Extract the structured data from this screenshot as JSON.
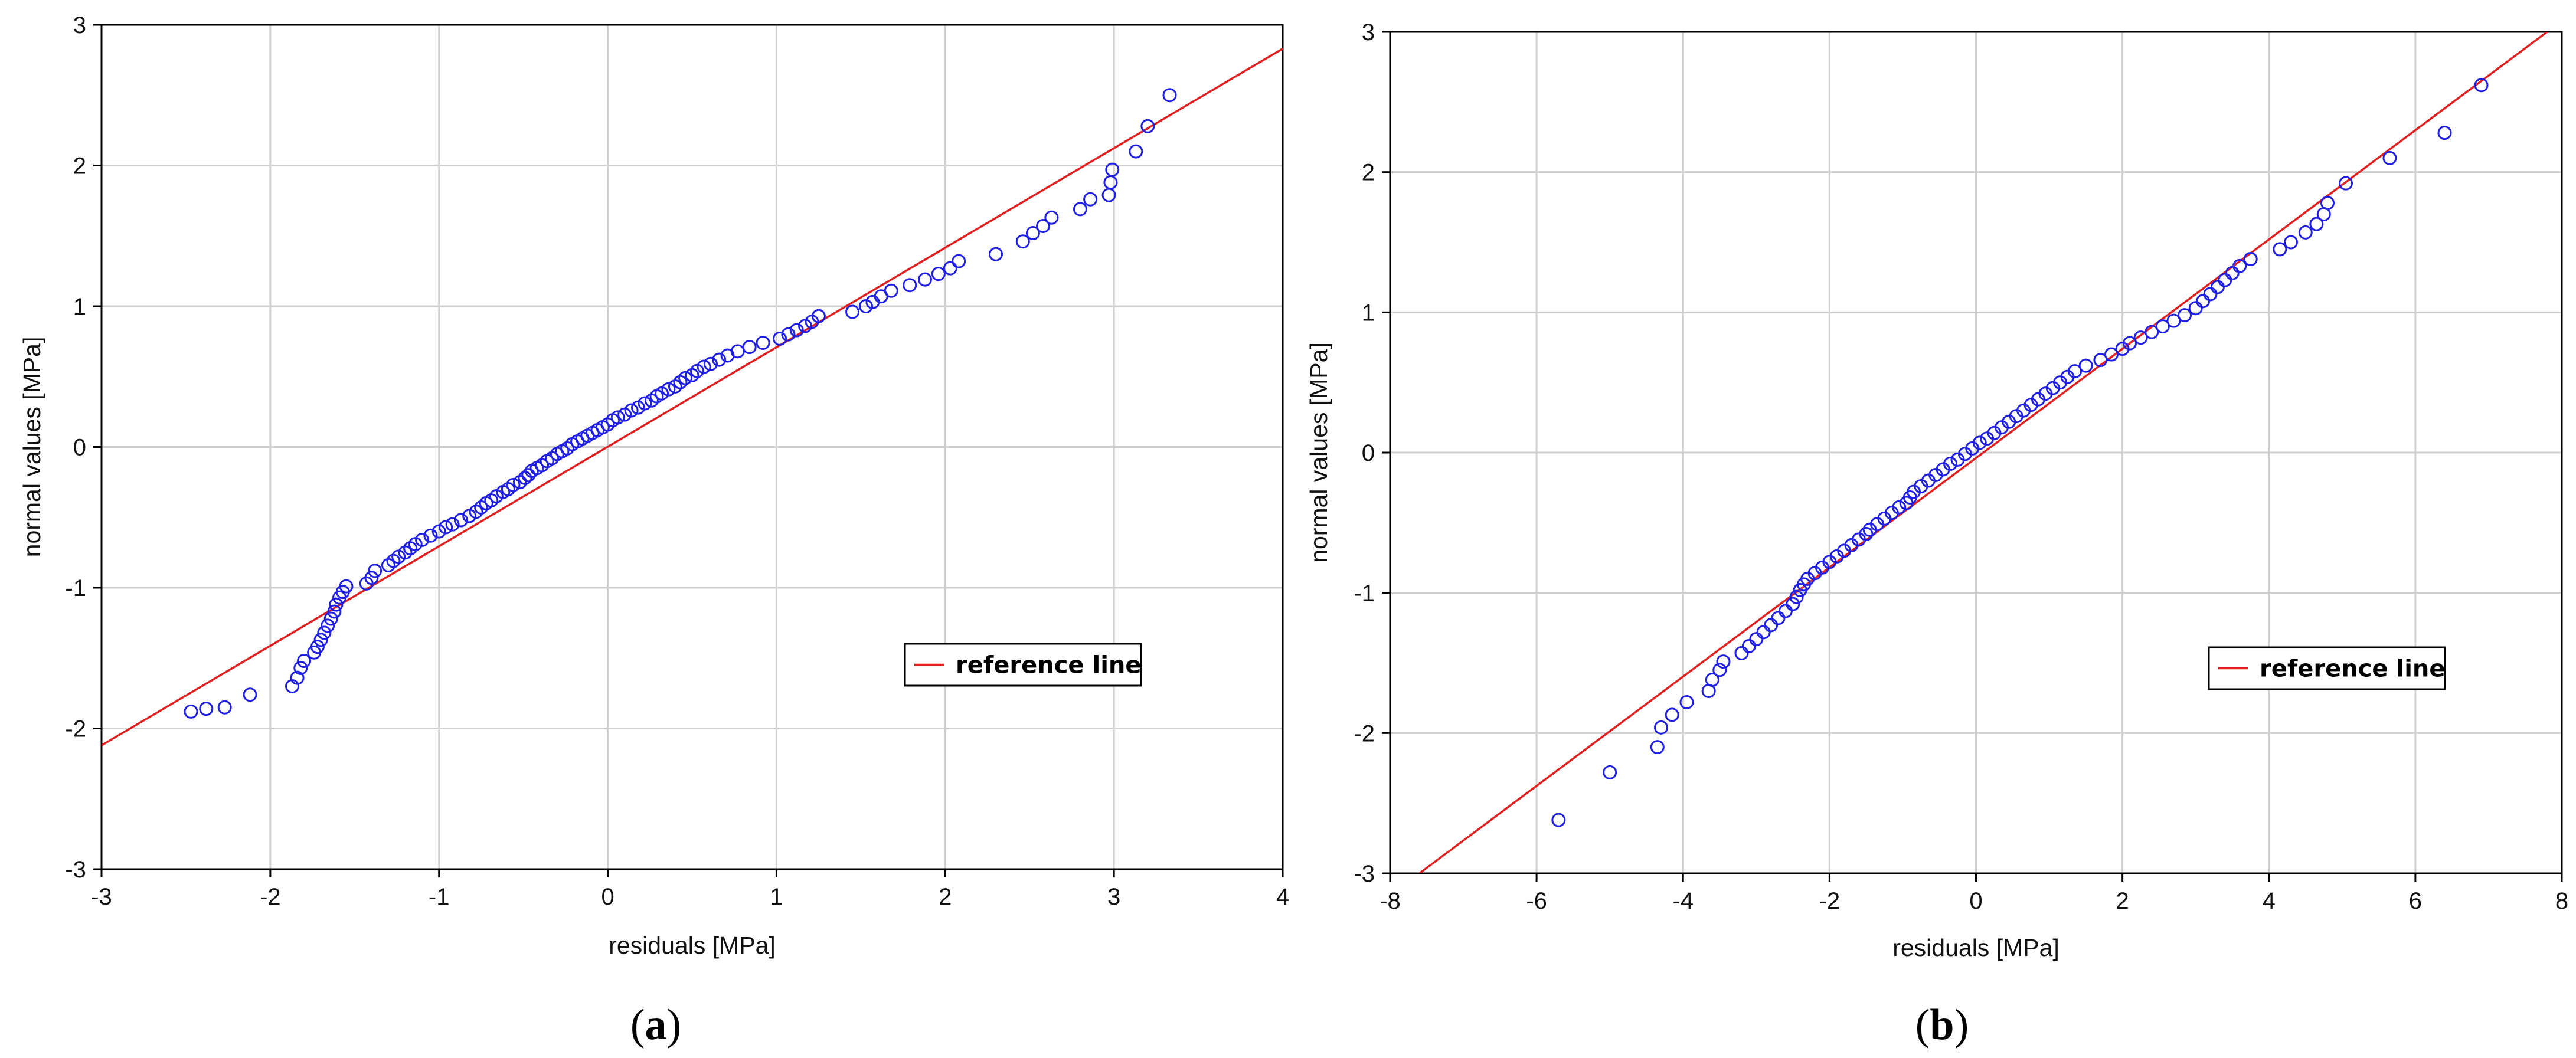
{
  "chart_data": [
    {
      "type": "scatter",
      "caption_letter": "a",
      "xlabel": "residuals  [MPa]",
      "ylabel": "normal values  [MPa]",
      "xlim": [
        -3,
        4
      ],
      "ylim": [
        -3,
        3
      ],
      "xticks": [
        "-3",
        "-2",
        "-1",
        "0",
        "1",
        "2",
        "3",
        "4"
      ],
      "yticks": [
        "-3",
        "-2",
        "-1",
        "0",
        "1",
        "2",
        "3"
      ],
      "grid": true,
      "legend": {
        "label": "reference line",
        "position": "lower-right"
      },
      "marker_color": "#1f1fe6",
      "line_color": "#e02020",
      "reference_line": [
        [
          -3,
          -2.12
        ],
        [
          4,
          2.83
        ]
      ],
      "series": [
        {
          "name": "residuals",
          "x": [
            -2.47,
            -2.38,
            -2.27,
            -2.12,
            -1.87,
            -1.84,
            -1.82,
            -1.8,
            -1.74,
            -1.72,
            -1.7,
            -1.68,
            -1.66,
            -1.64,
            -1.62,
            -1.61,
            -1.59,
            -1.57,
            -1.55,
            -1.43,
            -1.4,
            -1.38,
            -1.3,
            -1.27,
            -1.24,
            -1.2,
            -1.17,
            -1.14,
            -1.1,
            -1.05,
            -1.0,
            -0.96,
            -0.92,
            -0.87,
            -0.82,
            -0.78,
            -0.75,
            -0.72,
            -0.69,
            -0.66,
            -0.62,
            -0.59,
            -0.56,
            -0.52,
            -0.49,
            -0.47,
            -0.45,
            -0.42,
            -0.39,
            -0.36,
            -0.33,
            -0.3,
            -0.27,
            -0.24,
            -0.21,
            -0.18,
            -0.15,
            -0.12,
            -0.09,
            -0.06,
            -0.03,
            0.0,
            0.03,
            0.06,
            0.1,
            0.14,
            0.18,
            0.22,
            0.26,
            0.29,
            0.32,
            0.36,
            0.4,
            0.43,
            0.46,
            0.5,
            0.53,
            0.57,
            0.61,
            0.66,
            0.71,
            0.77,
            0.84,
            0.92,
            1.02,
            1.07,
            1.12,
            1.17,
            1.21,
            1.25,
            1.45,
            1.53,
            1.57,
            1.62,
            1.68,
            1.79,
            1.88,
            1.96,
            2.03,
            2.08,
            2.3,
            2.46,
            2.52,
            2.58,
            2.63,
            2.8,
            2.86,
            2.97,
            2.98,
            2.99,
            3.13,
            3.2,
            3.33
          ],
          "y": [
            -1.88,
            -1.86,
            -1.85,
            -1.76,
            -1.7,
            -1.64,
            -1.57,
            -1.52,
            -1.46,
            -1.42,
            -1.37,
            -1.32,
            -1.27,
            -1.22,
            -1.17,
            -1.12,
            -1.07,
            -1.03,
            -0.99,
            -0.97,
            -0.93,
            -0.88,
            -0.84,
            -0.81,
            -0.78,
            -0.75,
            -0.72,
            -0.69,
            -0.66,
            -0.63,
            -0.6,
            -0.57,
            -0.55,
            -0.52,
            -0.49,
            -0.46,
            -0.43,
            -0.4,
            -0.38,
            -0.35,
            -0.32,
            -0.3,
            -0.27,
            -0.25,
            -0.22,
            -0.2,
            -0.17,
            -0.15,
            -0.13,
            -0.1,
            -0.08,
            -0.05,
            -0.03,
            -0.01,
            0.02,
            0.04,
            0.06,
            0.08,
            0.1,
            0.12,
            0.14,
            0.16,
            0.19,
            0.21,
            0.23,
            0.26,
            0.28,
            0.31,
            0.33,
            0.36,
            0.38,
            0.41,
            0.43,
            0.46,
            0.49,
            0.51,
            0.54,
            0.57,
            0.59,
            0.62,
            0.65,
            0.68,
            0.71,
            0.74,
            0.77,
            0.8,
            0.83,
            0.86,
            0.89,
            0.93,
            0.96,
            1.0,
            1.03,
            1.07,
            1.11,
            1.15,
            1.19,
            1.23,
            1.27,
            1.32,
            1.37,
            1.46,
            1.52,
            1.57,
            1.63,
            1.69,
            1.76,
            1.79,
            1.88,
            1.97,
            2.1,
            2.28,
            2.5
          ]
        }
      ]
    },
    {
      "type": "scatter",
      "caption_letter": "b",
      "xlabel": "residuals    [MPa]",
      "ylabel": "normal values  [MPa]",
      "xlim": [
        -8,
        8
      ],
      "ylim": [
        -3,
        3
      ],
      "xticks": [
        "-8",
        "-6",
        "-4",
        "-2",
        "0",
        "2",
        "4",
        "6",
        "8"
      ],
      "yticks": [
        "-3",
        "-2",
        "-1",
        "0",
        "1",
        "2",
        "3"
      ],
      "grid": true,
      "legend": {
        "label": "reference line",
        "position": "lower-right"
      },
      "marker_color": "#1f1fe6",
      "line_color": "#e02020",
      "reference_line": [
        [
          -7.6,
          -3.0
        ],
        [
          7.8,
          3.0
        ]
      ],
      "series": [
        {
          "name": "residuals",
          "x": [
            -5.7,
            -5.0,
            -4.35,
            -4.3,
            -4.15,
            -3.95,
            -3.65,
            -3.6,
            -3.5,
            -3.45,
            -3.2,
            -3.1,
            -3.0,
            -2.9,
            -2.8,
            -2.7,
            -2.6,
            -2.5,
            -2.45,
            -2.4,
            -2.35,
            -2.3,
            -2.2,
            -2.1,
            -2.0,
            -1.9,
            -1.8,
            -1.7,
            -1.6,
            -1.5,
            -1.45,
            -1.35,
            -1.25,
            -1.15,
            -1.05,
            -0.95,
            -0.9,
            -0.85,
            -0.75,
            -0.65,
            -0.55,
            -0.45,
            -0.35,
            -0.25,
            -0.15,
            -0.05,
            0.05,
            0.15,
            0.25,
            0.35,
            0.45,
            0.55,
            0.65,
            0.75,
            0.85,
            0.95,
            1.05,
            1.15,
            1.25,
            1.35,
            1.5,
            1.7,
            1.85,
            2.0,
            2.1,
            2.25,
            2.4,
            2.55,
            2.7,
            2.85,
            3.0,
            3.1,
            3.2,
            3.3,
            3.4,
            3.5,
            3.6,
            3.75,
            4.15,
            4.3,
            4.5,
            4.65,
            4.75,
            4.8,
            5.05,
            5.65,
            6.4,
            6.9
          ],
          "y": [
            -2.62,
            -2.28,
            -2.1,
            -1.96,
            -1.87,
            -1.78,
            -1.7,
            -1.62,
            -1.55,
            -1.49,
            -1.43,
            -1.38,
            -1.33,
            -1.28,
            -1.23,
            -1.18,
            -1.13,
            -1.08,
            -1.03,
            -0.98,
            -0.94,
            -0.9,
            -0.86,
            -0.82,
            -0.78,
            -0.74,
            -0.7,
            -0.66,
            -0.62,
            -0.58,
            -0.55,
            -0.51,
            -0.47,
            -0.43,
            -0.39,
            -0.36,
            -0.32,
            -0.28,
            -0.24,
            -0.2,
            -0.16,
            -0.12,
            -0.08,
            -0.05,
            -0.01,
            0.03,
            0.07,
            0.1,
            0.14,
            0.18,
            0.22,
            0.26,
            0.3,
            0.34,
            0.38,
            0.42,
            0.46,
            0.5,
            0.54,
            0.58,
            0.62,
            0.66,
            0.7,
            0.74,
            0.78,
            0.82,
            0.86,
            0.9,
            0.94,
            0.98,
            1.03,
            1.08,
            1.13,
            1.18,
            1.23,
            1.28,
            1.33,
            1.38,
            1.45,
            1.5,
            1.57,
            1.63,
            1.7,
            1.78,
            1.92,
            2.1,
            2.28,
            2.62
          ]
        }
      ]
    }
  ]
}
